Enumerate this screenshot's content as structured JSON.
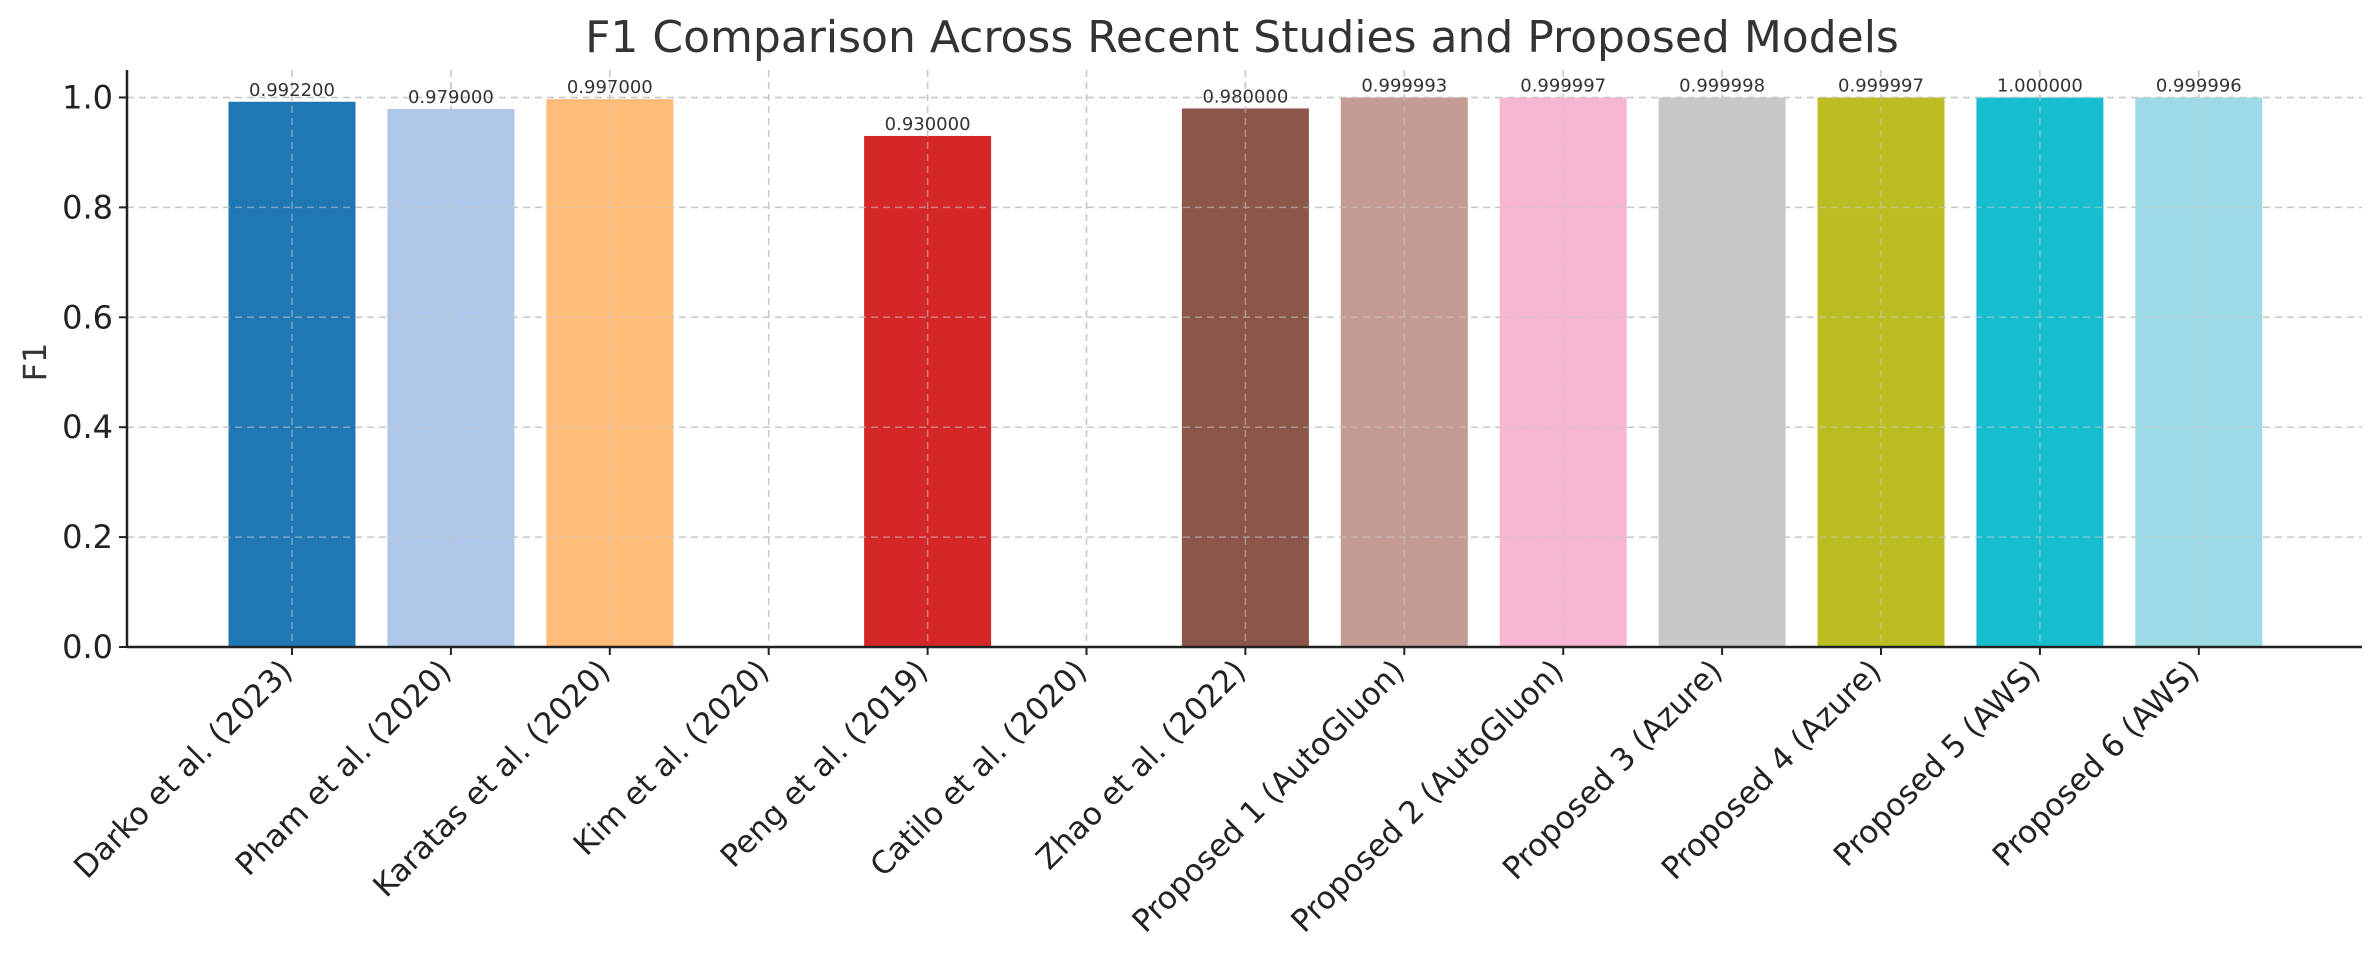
{
  "chart_data": {
    "type": "bar",
    "title": "F1 Comparison Across Recent Studies and Proposed Models",
    "xlabel": "",
    "ylabel": "F1",
    "ylim": [
      0,
      1.05
    ],
    "yticks": [
      "0.0",
      "0.2",
      "0.4",
      "0.6",
      "0.8",
      "1.0"
    ],
    "grid": true,
    "categories": [
      "Darko et al. (2023)",
      "Pham et al. (2020)",
      "Karatas et al. (2020)",
      "Kim et al. (2020)",
      "Peng et al. (2019)",
      "Catilo et al. (2020)",
      "Zhao et al. (2022)",
      "Proposed 1 (AutoGluon)",
      "Proposed 2 (AutoGluon)",
      "Proposed 3 (Azure)",
      "Proposed 4 (Azure)",
      "Proposed 5 (AWS)",
      "Proposed 6 (AWS)"
    ],
    "values": [
      0.9922,
      0.979,
      0.997,
      null,
      0.93,
      null,
      0.98,
      0.999993,
      0.999997,
      0.999998,
      0.999997,
      1.0,
      0.999996
    ],
    "value_labels": [
      "0.992200",
      "0.979000",
      "0.997000",
      "",
      "0.930000",
      "",
      "0.980000",
      "0.999993",
      "0.999997",
      "0.999998",
      "0.999997",
      "1.000000",
      "0.999996"
    ],
    "colors": [
      "#1f77b4",
      "#aec7e8",
      "#ffbb78",
      "#98df8a",
      "#d62728",
      "#9467bd",
      "#8c564b",
      "#c49c94",
      "#f7b6d2",
      "#c7c7c7",
      "#bcbd22",
      "#17becf",
      "#9edae5"
    ]
  }
}
